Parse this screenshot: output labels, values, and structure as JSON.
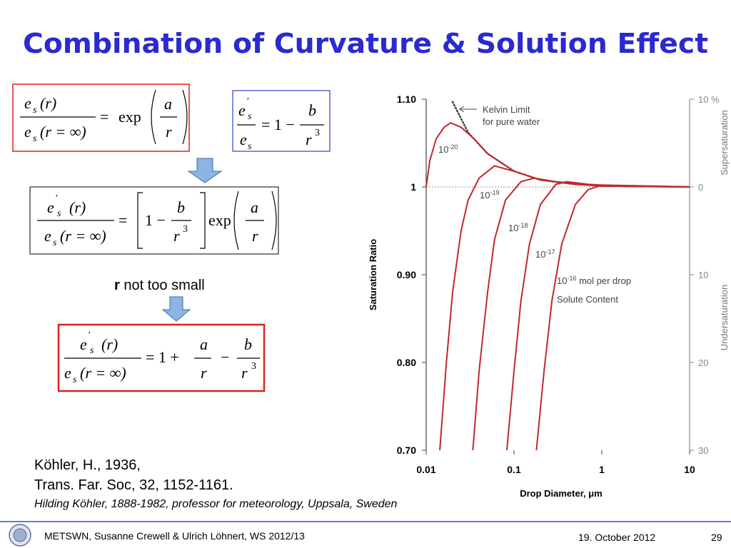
{
  "title": "Combination of Curvature & Solution Effect",
  "equations": [
    {
      "parts": [
        "e",
        "s",
        "(r)",
        "e",
        "s",
        "(r = ∞)",
        "=",
        "exp",
        "a",
        "r"
      ]
    },
    {
      "parts": [
        "e",
        "'",
        "s",
        "e",
        "s",
        "= 1 −",
        "b",
        "r",
        "3"
      ]
    },
    {
      "parts": [
        "e",
        "'",
        "s",
        "(r)",
        "e",
        "s",
        "(r = ∞)",
        "=",
        "1 −",
        "b",
        "r",
        "3",
        "exp",
        "a",
        "r"
      ]
    },
    {
      "parts": [
        "e",
        "'",
        "s",
        "(r)",
        "e",
        "s",
        "(r = ∞)",
        "= 1 +",
        "a",
        "r",
        "−",
        "b",
        "r",
        "3"
      ]
    }
  ],
  "condition": {
    "bold": "r",
    "rest": " not too small"
  },
  "citation": [
    "Köhler, H., 1936,",
    "Trans. Far. Soc, 32, 1152-1161.",
    "Hilding Köhler, 1888-1982, professor for meteorology, Uppsala, Sweden"
  ],
  "footer": {
    "left": "METSWN, Susanne Crewell & Ulrich Löhnert,  WS 2012/13",
    "date": "19. October 2012",
    "page": "29"
  },
  "chart_data": {
    "type": "line",
    "x_label": "Drop Diameter,  μm",
    "y_label": "Saturation Ratio",
    "y2_labels": [
      "Supersaturation",
      "Undersaturation"
    ],
    "xlog": true,
    "xlim": [
      0.01,
      10
    ],
    "xticks": [
      0.01,
      0.1,
      1,
      10
    ],
    "ylim": [
      0.7,
      1.1
    ],
    "yticks": [
      {
        "value": 1.1,
        "label": "1.10"
      },
      1,
      {
        "value": 0.9,
        "label": "0.90"
      },
      {
        "value": 0.8,
        "label": "0.80"
      },
      {
        "value": 0.7,
        "label": "0.70"
      }
    ],
    "y2lim": [
      -30,
      10
    ],
    "y2ticks": [
      {
        "value": 10,
        "label": "10 %"
      },
      0,
      {
        "value": -10,
        "label": "10"
      },
      {
        "value": -20,
        "label": "20"
      },
      {
        "value": -30,
        "label": "30"
      }
    ],
    "reference_line": 1,
    "annotations": [
      "Kelvin Limit",
      "for pure water",
      "Solute Content"
    ],
    "series": [
      {
        "name": "Kelvin Limit",
        "color": "#444444",
        "style": "dotted",
        "x": [
          0.02,
          0.03,
          0.05,
          0.1,
          0.2,
          0.5,
          1,
          10
        ],
        "values": [
          1.097,
          1.062,
          1.038,
          1.018,
          1.008,
          1.003,
          1.002,
          1.0
        ]
      },
      {
        "name": {
          "base": "10",
          "exp": "-20"
        },
        "color": "#c0282d",
        "style": "solid",
        "x": [
          0.01,
          0.011,
          0.013,
          0.016,
          0.019,
          0.025,
          0.035,
          0.05,
          0.1,
          0.2,
          0.5,
          1,
          10
        ],
        "values": [
          1.0,
          1.03,
          1.055,
          1.068,
          1.073,
          1.068,
          1.055,
          1.038,
          1.018,
          1.008,
          1.003,
          1.001,
          1.0
        ]
      },
      {
        "name": {
          "base": "10",
          "exp": "-19"
        },
        "color": "#c0282d",
        "style": "solid",
        "x": [
          0.0143,
          0.017,
          0.02,
          0.025,
          0.03,
          0.04,
          0.06,
          0.1,
          0.2,
          0.5,
          1,
          10
        ],
        "values": [
          0.7,
          0.8,
          0.88,
          0.95,
          0.985,
          1.01,
          1.024,
          1.018,
          1.008,
          1.003,
          1.001,
          1.0
        ]
      },
      {
        "name": {
          "base": "10",
          "exp": "-18"
        },
        "color": "#c0282d",
        "style": "solid",
        "x": [
          0.034,
          0.04,
          0.05,
          0.06,
          0.08,
          0.12,
          0.17,
          0.3,
          1,
          10
        ],
        "values": [
          0.7,
          0.79,
          0.88,
          0.94,
          0.985,
          1.006,
          1.01,
          1.006,
          1.001,
          1.0
        ]
      },
      {
        "name": {
          "base": "10",
          "exp": "-17"
        },
        "color": "#c0282d",
        "style": "solid",
        "x": [
          0.083,
          0.1,
          0.12,
          0.15,
          0.2,
          0.3,
          0.4,
          0.7,
          1,
          10
        ],
        "values": [
          0.7,
          0.79,
          0.87,
          0.935,
          0.98,
          1.003,
          1.006,
          1.003,
          1.002,
          1.0
        ]
      },
      {
        "name": {
          "base": "10",
          "exp": "-16",
          "suffix": " mol per drop"
        },
        "color": "#c0282d",
        "style": "solid",
        "x": [
          0.18,
          0.22,
          0.27,
          0.35,
          0.5,
          0.7,
          1,
          2,
          10
        ],
        "values": [
          0.7,
          0.79,
          0.87,
          0.935,
          0.98,
          0.997,
          1.002,
          1.001,
          1.0
        ]
      }
    ]
  }
}
